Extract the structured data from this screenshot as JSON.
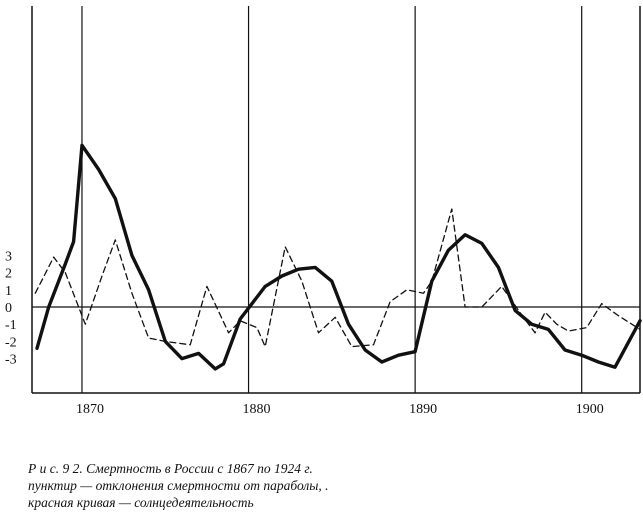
{
  "chart_data": {
    "type": "line",
    "xlim": [
      1867,
      1903.5
    ],
    "ylim": [
      -5,
      10
    ],
    "x_ticks": [
      1870,
      1880,
      1890,
      1900
    ],
    "y_ticks": [
      3,
      2,
      1,
      0,
      -1,
      -2,
      -3
    ],
    "y_tick_labels": [
      "3",
      "2",
      "1",
      "0",
      "-1",
      "-2",
      "-3"
    ],
    "vertical_gridlines": [
      1870,
      1880,
      1890,
      1900
    ],
    "zero_line": true,
    "series": [
      {
        "style": "solid",
        "points": [
          [
            1867.3,
            -2.4
          ],
          [
            1868,
            0
          ],
          [
            1869,
            2.5
          ],
          [
            1869.5,
            3.8
          ],
          [
            1870,
            9.4
          ],
          [
            1871,
            8
          ],
          [
            1872,
            6.3
          ],
          [
            1873,
            3
          ],
          [
            1874,
            1
          ],
          [
            1875,
            -2
          ],
          [
            1876,
            -3
          ],
          [
            1877,
            -2.7
          ],
          [
            1878,
            -3.6
          ],
          [
            1878.5,
            -3.3
          ],
          [
            1879.5,
            -0.7
          ],
          [
            1881,
            1.2
          ],
          [
            1882,
            1.8
          ],
          [
            1883,
            2.2
          ],
          [
            1884,
            2.3
          ],
          [
            1885,
            1.5
          ],
          [
            1886,
            -1
          ],
          [
            1887,
            -2.5
          ],
          [
            1888,
            -3.2
          ],
          [
            1889,
            -2.8
          ],
          [
            1890,
            -2.6
          ],
          [
            1891,
            1.5
          ],
          [
            1892,
            3.3
          ],
          [
            1893,
            4.2
          ],
          [
            1894,
            3.7
          ],
          [
            1895,
            2.3
          ],
          [
            1896,
            -0.2
          ],
          [
            1897,
            -1
          ],
          [
            1898,
            -1.3
          ],
          [
            1899,
            -2.5
          ],
          [
            1900,
            -2.8
          ],
          [
            1901,
            -3.2
          ],
          [
            1902,
            -3.5
          ],
          [
            1903.5,
            -0.8
          ]
        ]
      },
      {
        "style": "dashed",
        "points": [
          [
            1867.2,
            0.8
          ],
          [
            1868.3,
            2.9
          ],
          [
            1869,
            2
          ],
          [
            1870.2,
            -1
          ],
          [
            1871.2,
            1.8
          ],
          [
            1872,
            3.9
          ],
          [
            1873,
            0.8
          ],
          [
            1874,
            -1.8
          ],
          [
            1875,
            -2
          ],
          [
            1876.5,
            -2.2
          ],
          [
            1877.5,
            1.2
          ],
          [
            1878.8,
            -1.5
          ],
          [
            1879.5,
            -0.8
          ],
          [
            1880.5,
            -1.2
          ],
          [
            1881,
            -2.3
          ],
          [
            1882.2,
            3.5
          ],
          [
            1883.2,
            1.5
          ],
          [
            1884.2,
            -1.5
          ],
          [
            1885.2,
            -0.6
          ],
          [
            1886.2,
            -2.3
          ],
          [
            1887.5,
            -2.2
          ],
          [
            1888.5,
            0.3
          ],
          [
            1889.5,
            1
          ],
          [
            1890.5,
            0.8
          ],
          [
            1891,
            1.5
          ],
          [
            1892.2,
            5.7
          ],
          [
            1893,
            0
          ],
          [
            1894,
            0
          ],
          [
            1895.2,
            1.2
          ],
          [
            1896.5,
            -0.6
          ],
          [
            1897.2,
            -1.5
          ],
          [
            1897.8,
            -0.3
          ],
          [
            1898.5,
            -1
          ],
          [
            1899.2,
            -1.4
          ],
          [
            1900.3,
            -1.2
          ],
          [
            1901.2,
            0.2
          ],
          [
            1902.2,
            -0.5
          ],
          [
            1903.5,
            -1.3
          ]
        ]
      }
    ]
  },
  "caption": {
    "line1": "Р и с.  9 2.  Смертность в России с 1867 по 1924 г.",
    "line2": "пунктир — отклонения  смертности  от  параболы, .",
    "line3": "красная кривая — солнцедеятельность"
  }
}
